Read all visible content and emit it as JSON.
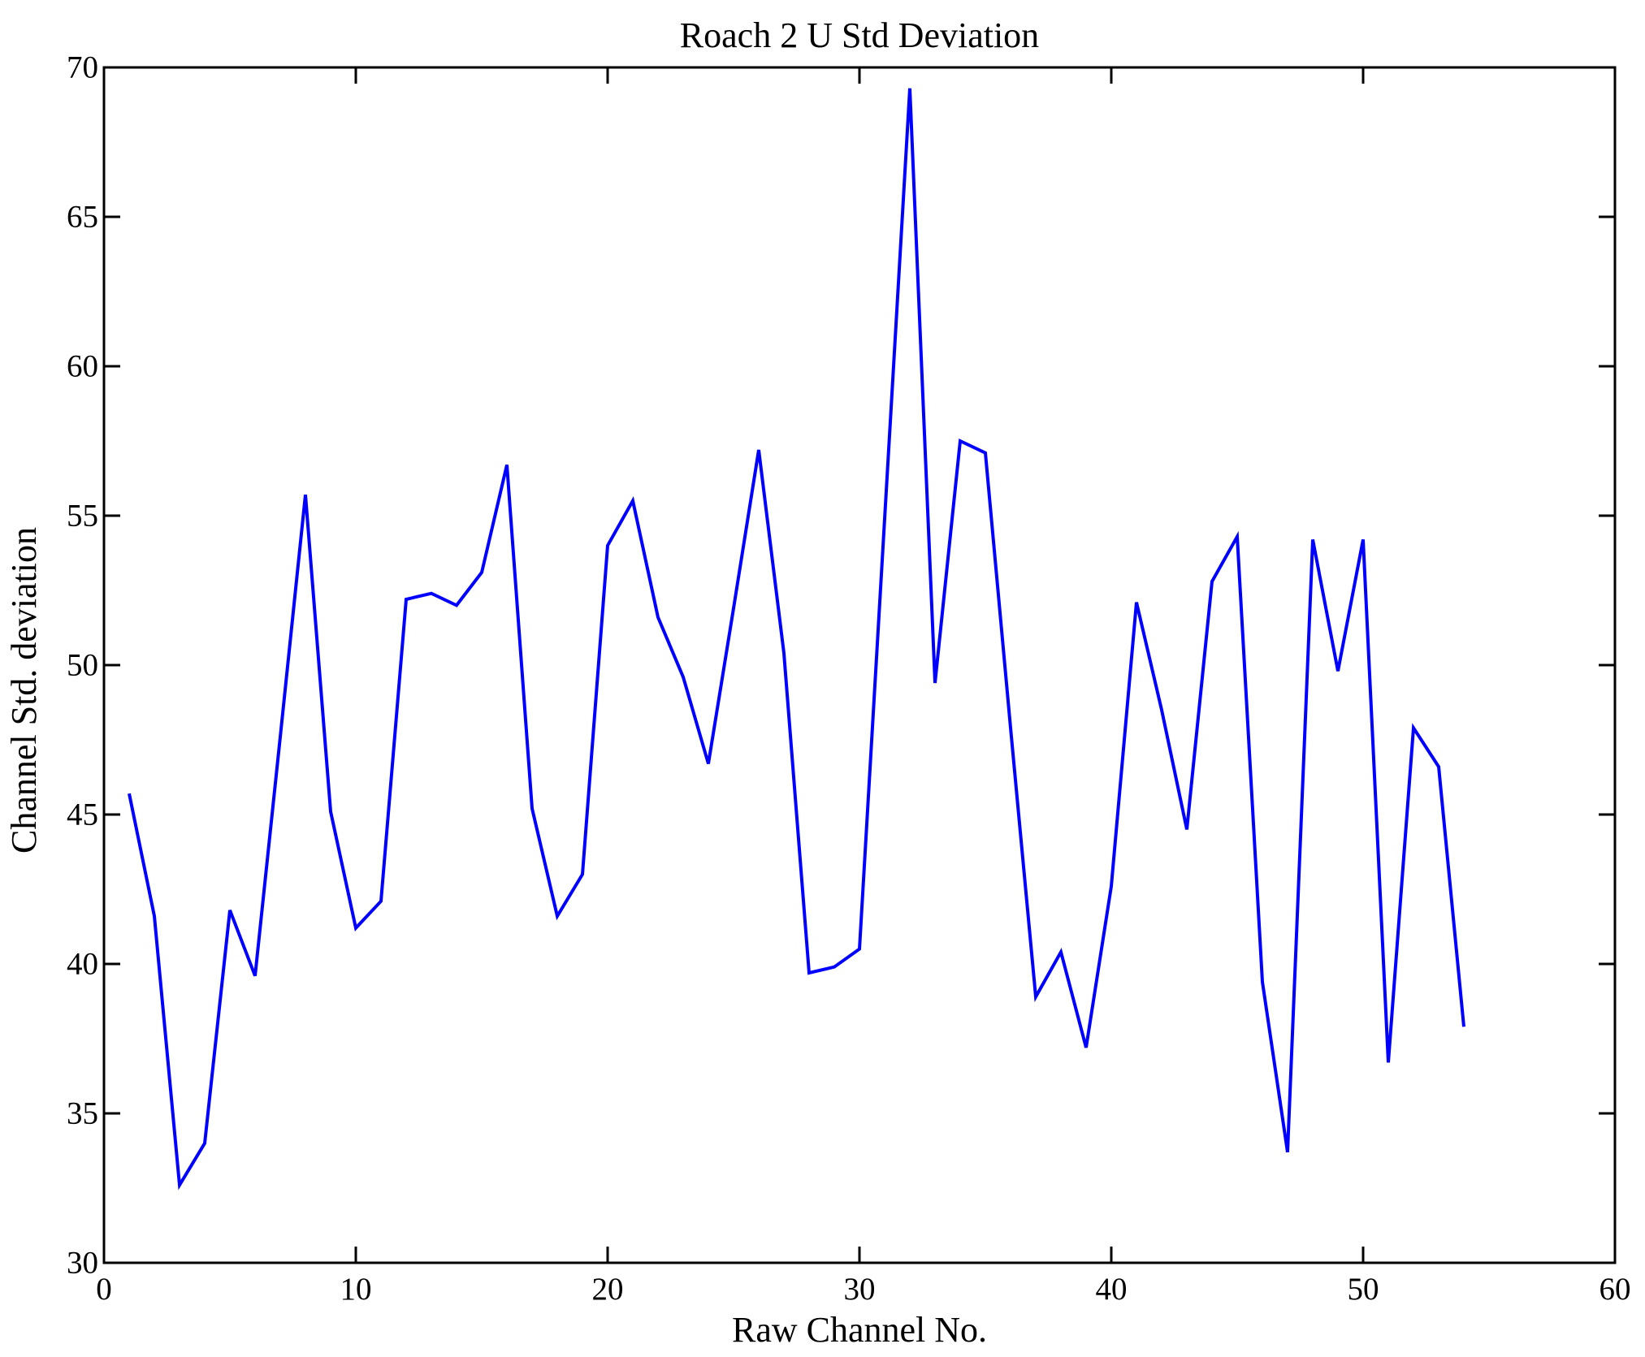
{
  "figure": {
    "background": "#ffffff"
  },
  "chart_data": {
    "type": "line",
    "title": "Roach 2 U Std Deviation",
    "xlabel": "Raw Channel No.",
    "ylabel": "Channel Std. deviation",
    "x": [
      1,
      2,
      3,
      4,
      5,
      6,
      7,
      8,
      9,
      10,
      11,
      12,
      13,
      14,
      15,
      16,
      17,
      18,
      19,
      20,
      21,
      22,
      23,
      24,
      25,
      26,
      27,
      28,
      29,
      30,
      31,
      32,
      33,
      34,
      35,
      36,
      37,
      38,
      39,
      40,
      41,
      42,
      43,
      44,
      45,
      46,
      47,
      48,
      49,
      50,
      51,
      52,
      53,
      54
    ],
    "values": [
      45.7,
      41.6,
      32.6,
      34.0,
      41.8,
      39.6,
      47.6,
      55.7,
      45.1,
      41.2,
      42.1,
      52.2,
      52.4,
      52.0,
      53.1,
      56.7,
      45.2,
      41.6,
      43.0,
      54.0,
      55.5,
      51.6,
      49.6,
      46.7,
      51.9,
      57.2,
      50.4,
      39.7,
      39.9,
      40.5,
      54.9,
      69.3,
      49.4,
      57.5,
      57.1,
      47.9,
      38.9,
      40.4,
      37.2,
      42.6,
      52.1,
      48.5,
      44.5,
      52.8,
      54.3,
      39.4,
      33.7,
      54.2,
      49.8,
      54.2,
      36.7,
      47.9,
      46.6,
      37.9
    ],
    "xlim": [
      0,
      60
    ],
    "ylim": [
      30,
      70
    ],
    "xticks": [
      0,
      10,
      20,
      30,
      40,
      50,
      60
    ],
    "yticks": [
      30,
      35,
      40,
      45,
      50,
      55,
      60,
      65,
      70
    ],
    "grid": false,
    "legend": null,
    "line_color": "#0000FF",
    "axis_color": "#000000",
    "tick_direction": "in",
    "box": true
  }
}
